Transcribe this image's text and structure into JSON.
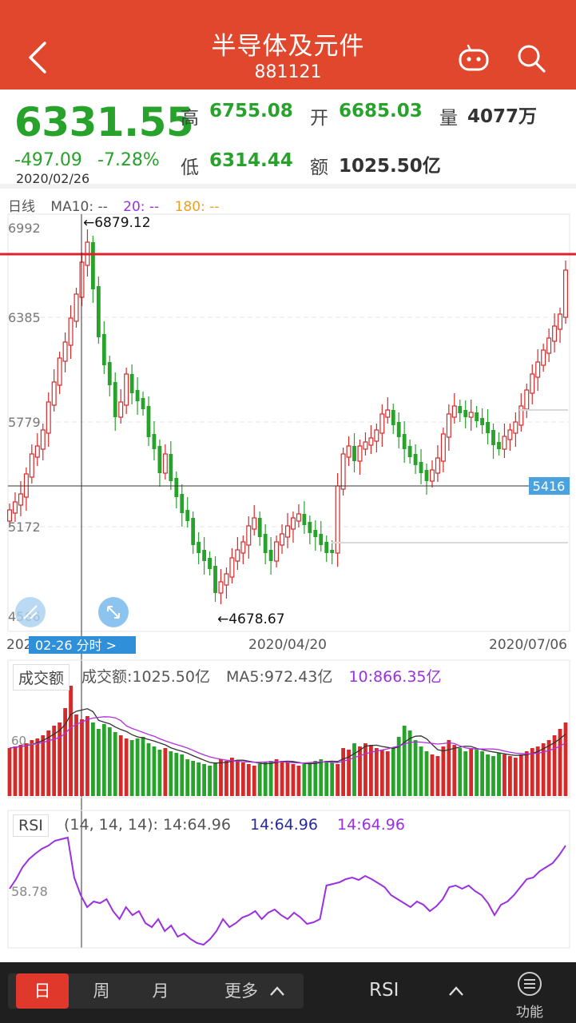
{
  "header": {
    "title": "半导体及元件",
    "code": "881121",
    "bg_color": "#e0472d",
    "icons": [
      "back-icon",
      "robot-icon",
      "search-icon"
    ]
  },
  "quote": {
    "price": "6331.55",
    "change": "-497.09",
    "change_pct": "-7.28%",
    "date": "2020/02/26",
    "high_label": "高",
    "high": "6755.08",
    "open_label": "开",
    "open": "6685.03",
    "volume_label": "量",
    "volume": "4077万",
    "low_label": "低",
    "low": "6314.44",
    "amount_label": "额",
    "amount": "1025.50亿",
    "down_color": "#27a22b",
    "up_color": "#d42a2a"
  },
  "kline": {
    "period_label": "日线",
    "ma10_label": "MA10: --",
    "ma20_label": "20: --",
    "ma180_label": "180: --",
    "y_ticks": [
      "6992",
      "6385",
      "5779",
      "5172",
      "4566"
    ],
    "x_labels": [
      "2020/02/26",
      "2020/04/20",
      "2020/07/06"
    ],
    "x_label_first": "202",
    "max_annotation": "←6879.12",
    "min_annotation": "←4678.67",
    "crosshair_value": "5416",
    "cursor_tag": "02-26  分时 >",
    "current_line_color": "#e0202a"
  },
  "volume": {
    "tab_label": "成交额",
    "amount": "成交额:1025.50亿",
    "ma5": "MA5:972.43亿",
    "ma10": "10:866.35亿",
    "y_tick": "60…"
  },
  "rsi": {
    "tab_label": "RSI",
    "params": "(14, 14, 14): 14:64.96",
    "rsi2": "14:64.96",
    "rsi3": "14:64.96",
    "y_tick": "58.78"
  },
  "bottom_bar": {
    "periods": [
      "日",
      "周",
      "月",
      "更多"
    ],
    "active": "日",
    "indicator": "RSI",
    "function_label": "功能"
  }
}
